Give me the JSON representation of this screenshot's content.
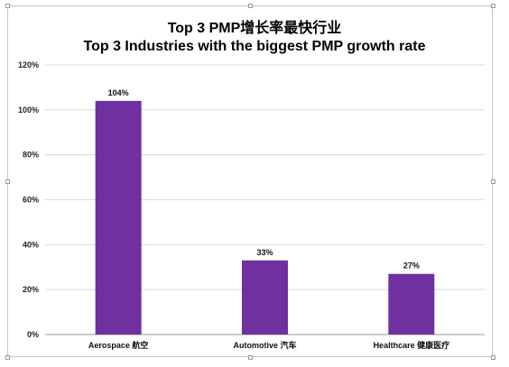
{
  "chart_data": {
    "type": "bar",
    "title": "Top 3 PMP增长率最快行业",
    "subtitle": "Top 3 Industries with the biggest PMP growth rate",
    "categories": [
      "Aerospace 航空",
      "Automotive 汽车",
      "Healthcare 健康医疗"
    ],
    "values": [
      104,
      33,
      27
    ],
    "data_labels": [
      "104%",
      "33%",
      "27%"
    ],
    "ylim": [
      0,
      120
    ],
    "yticks": [
      0,
      20,
      40,
      60,
      80,
      100,
      120
    ],
    "ytick_labels": [
      "0%",
      "20%",
      "40%",
      "60%",
      "80%",
      "100%",
      "120%"
    ],
    "grid": true,
    "legend": "none",
    "bar_color": "#7030a0",
    "xlabel": "",
    "ylabel": ""
  }
}
